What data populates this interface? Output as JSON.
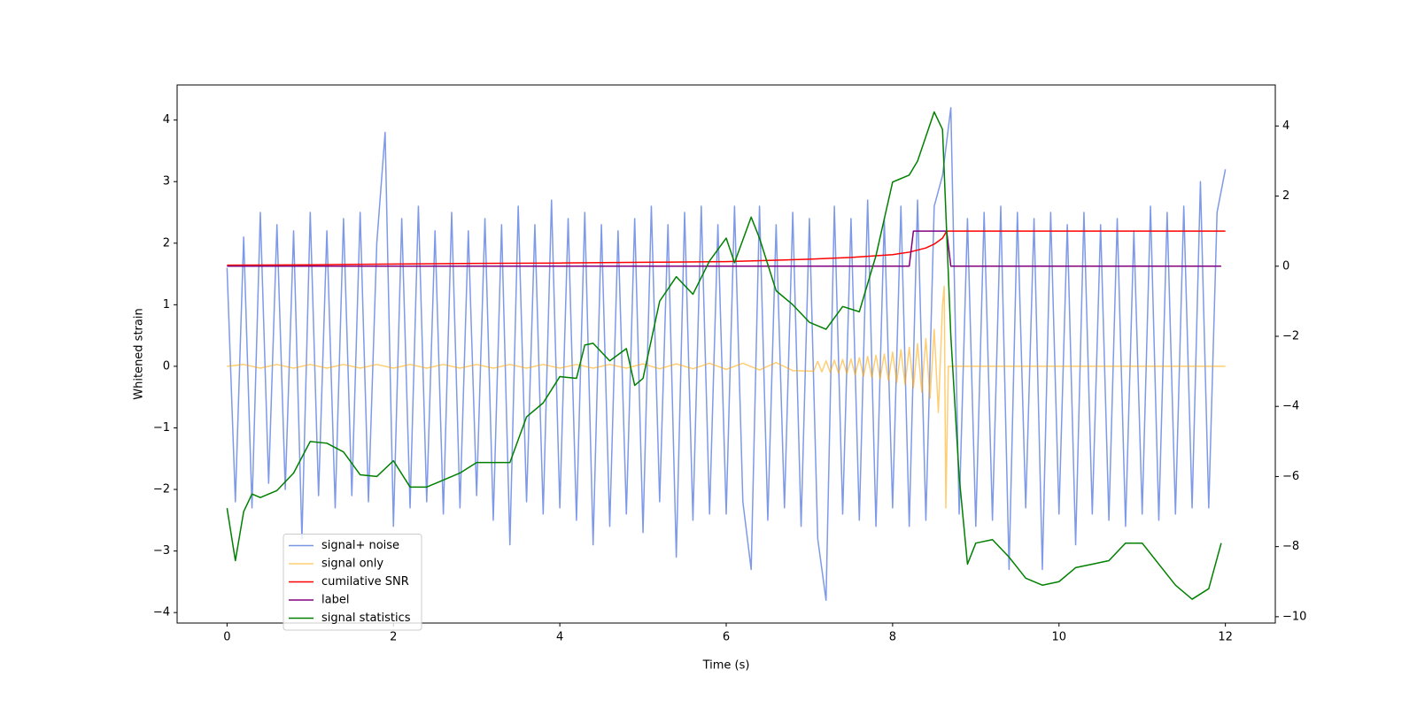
{
  "chart_data": {
    "type": "line",
    "xlabel": "Time (s)",
    "ylabel": "Whitened strain",
    "xlim": [
      -0.6,
      12.6
    ],
    "xticks": [
      0,
      2,
      4,
      6,
      8,
      10,
      12
    ],
    "ylim": [
      -4.17,
      4.57
    ],
    "yticks": [
      {
        "value": -4,
        "label": "−4"
      },
      {
        "value": -3,
        "label": "−3"
      },
      {
        "value": -2,
        "label": "−2"
      },
      {
        "value": -1,
        "label": "−1"
      },
      0,
      1,
      2,
      3,
      4
    ],
    "y2lim": [
      -10.18,
      5.17
    ],
    "y2ticks": [
      {
        "value": -10,
        "label": "−10"
      },
      {
        "value": -8,
        "label": "−8"
      },
      {
        "value": -6,
        "label": "−6"
      },
      {
        "value": -4,
        "label": "−4"
      },
      {
        "value": -2,
        "label": "−2"
      },
      0,
      2,
      4
    ],
    "legend": "lower left",
    "series": [
      {
        "name": "signal+ noise",
        "color": "#7794e6",
        "x": [
          0,
          0.1,
          0.2,
          0.3,
          0.4,
          0.5,
          0.6,
          0.7,
          0.8,
          0.9,
          1.0,
          1.1,
          1.2,
          1.3,
          1.4,
          1.5,
          1.6,
          1.7,
          1.8,
          1.9,
          2.0,
          2.1,
          2.2,
          2.3,
          2.4,
          2.5,
          2.6,
          2.7,
          2.8,
          2.9,
          3.0,
          3.1,
          3.2,
          3.3,
          3.4,
          3.5,
          3.6,
          3.7,
          3.8,
          3.9,
          4.0,
          4.1,
          4.2,
          4.3,
          4.4,
          4.5,
          4.6,
          4.7,
          4.8,
          4.9,
          5.0,
          5.1,
          5.2,
          5.3,
          5.4,
          5.5,
          5.6,
          5.7,
          5.8,
          5.9,
          6.0,
          6.1,
          6.2,
          6.3,
          6.4,
          6.5,
          6.6,
          6.7,
          6.8,
          6.9,
          7.0,
          7.1,
          7.2,
          7.3,
          7.4,
          7.5,
          7.6,
          7.7,
          7.8,
          7.9,
          8.0,
          8.1,
          8.2,
          8.3,
          8.4,
          8.5,
          8.6,
          8.7,
          8.8,
          8.9,
          9.0,
          9.1,
          9.2,
          9.3,
          9.4,
          9.5,
          9.6,
          9.7,
          9.8,
          9.9,
          10.0,
          10.1,
          10.2,
          10.3,
          10.4,
          10.5,
          10.6,
          10.7,
          10.8,
          10.9,
          11.0,
          11.1,
          11.2,
          11.3,
          11.4,
          11.5,
          11.6,
          11.7,
          11.8,
          11.9,
          12.0
        ],
        "values": [
          1.6,
          -2.2,
          2.1,
          -2.3,
          2.5,
          -1.9,
          2.3,
          -2.0,
          2.2,
          -2.8,
          2.5,
          -2.1,
          2.2,
          -2.3,
          2.4,
          -2.1,
          2.5,
          -2.2,
          2.0,
          3.8,
          -2.6,
          2.4,
          -2.3,
          2.6,
          -2.2,
          2.2,
          -2.4,
          2.5,
          -2.3,
          2.2,
          -2.1,
          2.4,
          -2.5,
          2.3,
          -2.9,
          2.6,
          -2.2,
          2.3,
          -2.4,
          2.7,
          -2.3,
          2.4,
          -2.5,
          2.5,
          -2.9,
          2.3,
          -2.6,
          2.2,
          -2.4,
          2.4,
          -2.7,
          2.6,
          -2.2,
          2.3,
          -3.1,
          2.5,
          -2.5,
          2.6,
          -2.4,
          2.3,
          -2.4,
          2.6,
          -2.2,
          -3.3,
          2.6,
          -2.5,
          2.3,
          -2.3,
          2.5,
          -2.6,
          2.4,
          -2.8,
          -3.8,
          2.6,
          -2.4,
          2.4,
          -2.5,
          2.7,
          -2.6,
          2.4,
          -2.3,
          2.6,
          -2.6,
          2.7,
          -2.5,
          2.6,
          3.1,
          4.2,
          -2.4,
          2.4,
          -2.6,
          2.5,
          -2.5,
          2.6,
          -3.3,
          2.5,
          -2.3,
          2.4,
          -3.3,
          2.5,
          -2.4,
          2.3,
          -2.9,
          2.5,
          -2.4,
          2.3,
          -2.5,
          2.4,
          -2.6,
          2.2,
          -2.4,
          2.6,
          -2.5,
          2.5,
          -2.4,
          2.6,
          -2.3,
          3.0,
          -2.3,
          2.5,
          3.2
        ]
      },
      {
        "name": "signal only",
        "color": "#ffa500",
        "x": [
          0,
          0.2,
          0.4,
          0.6,
          0.8,
          1.0,
          1.2,
          1.4,
          1.6,
          1.8,
          2.0,
          2.2,
          2.4,
          2.6,
          2.8,
          3.0,
          3.2,
          3.4,
          3.6,
          3.8,
          4.0,
          4.2,
          4.4,
          4.6,
          4.8,
          5.0,
          5.2,
          5.4,
          5.6,
          5.8,
          6.0,
          6.2,
          6.4,
          6.6,
          6.8,
          7.05,
          7.1,
          7.15,
          7.2,
          7.25,
          7.3,
          7.35,
          7.4,
          7.45,
          7.5,
          7.55,
          7.6,
          7.65,
          7.7,
          7.75,
          7.8,
          7.85,
          7.9,
          7.95,
          8.0,
          8.05,
          8.1,
          8.15,
          8.2,
          8.25,
          8.3,
          8.35,
          8.4,
          8.45,
          8.5,
          8.55,
          8.6,
          8.62,
          8.64,
          8.67,
          12
        ],
        "values": [
          0,
          0.03,
          -0.03,
          0.03,
          -0.03,
          0.03,
          -0.03,
          0.03,
          -0.03,
          0.03,
          -0.03,
          0.03,
          -0.03,
          0.03,
          -0.03,
          0.03,
          -0.03,
          0.03,
          -0.03,
          0.03,
          -0.03,
          0.03,
          -0.03,
          0.03,
          -0.03,
          0.04,
          -0.04,
          0.04,
          -0.04,
          0.05,
          -0.05,
          0.05,
          -0.06,
          0.06,
          -0.07,
          -0.08,
          0.08,
          -0.09,
          0.09,
          -0.1,
          0.1,
          -0.11,
          0.11,
          -0.12,
          0.12,
          -0.14,
          0.14,
          -0.16,
          0.16,
          -0.18,
          0.18,
          -0.2,
          0.2,
          -0.23,
          0.23,
          -0.26,
          0.27,
          -0.3,
          0.31,
          -0.35,
          0.37,
          -0.42,
          0.45,
          -0.52,
          0.6,
          -0.75,
          1.0,
          1.3,
          -2.3,
          0,
          0
        ]
      },
      {
        "name": "cumilative SNR",
        "color": "#ff0000",
        "axis": "y2",
        "x": [
          0,
          1,
          2,
          3,
          4,
          5,
          6,
          7,
          7.5,
          8,
          8.2,
          8.4,
          8.5,
          8.6,
          8.65,
          9,
          10,
          11,
          12
        ],
        "values": [
          0.03,
          0.04,
          0.06,
          0.08,
          0.09,
          0.11,
          0.13,
          0.2,
          0.25,
          0.33,
          0.4,
          0.52,
          0.63,
          0.8,
          1,
          1,
          1,
          1,
          1
        ]
      },
      {
        "name": "label",
        "color": "#800080",
        "axis": "y2",
        "x": [
          0,
          8.2,
          8.25,
          8.65,
          8.7,
          11.95
        ],
        "values": [
          0,
          0,
          1,
          1,
          0,
          0
        ]
      },
      {
        "name": "signal statistics",
        "color": "#008000",
        "axis": "y2",
        "x": [
          0,
          0.1,
          0.2,
          0.3,
          0.4,
          0.6,
          0.8,
          1.0,
          1.2,
          1.4,
          1.6,
          1.8,
          2.0,
          2.2,
          2.4,
          2.6,
          2.8,
          3.0,
          3.2,
          3.4,
          3.6,
          3.8,
          4.0,
          4.2,
          4.3,
          4.4,
          4.6,
          4.8,
          4.9,
          5.0,
          5.2,
          5.4,
          5.6,
          5.8,
          6.0,
          6.1,
          6.3,
          6.4,
          6.6,
          6.8,
          7.0,
          7.2,
          7.4,
          7.6,
          7.8,
          8.0,
          8.2,
          8.3,
          8.5,
          8.6,
          8.7,
          8.8,
          8.9,
          9.0,
          9.2,
          9.4,
          9.6,
          9.8,
          10.0,
          10.2,
          10.4,
          10.6,
          10.8,
          11.0,
          11.2,
          11.4,
          11.6,
          11.8,
          11.95
        ],
        "values": [
          -6.9,
          -8.4,
          -7.0,
          -6.5,
          -6.6,
          -6.4,
          -5.9,
          -5.0,
          -5.05,
          -5.3,
          -5.95,
          -6.0,
          -5.55,
          -6.3,
          -6.3,
          -6.1,
          -5.9,
          -5.6,
          -5.6,
          -5.6,
          -4.3,
          -3.9,
          -3.15,
          -3.2,
          -2.25,
          -2.2,
          -2.7,
          -2.35,
          -3.4,
          -3.2,
          -1.0,
          -0.3,
          -0.8,
          0.15,
          0.8,
          0.1,
          1.4,
          0.8,
          -0.7,
          -1.1,
          -1.6,
          -1.8,
          -1.15,
          -1.3,
          0.3,
          2.4,
          2.6,
          3.0,
          4.4,
          3.9,
          -2.0,
          -6.0,
          -8.5,
          -7.9,
          -7.8,
          -8.3,
          -8.9,
          -9.1,
          -9.0,
          -8.6,
          -8.5,
          -8.4,
          -7.9,
          -7.9,
          -8.5,
          -9.1,
          -9.5,
          -9.2,
          -7.9
        ]
      }
    ]
  }
}
